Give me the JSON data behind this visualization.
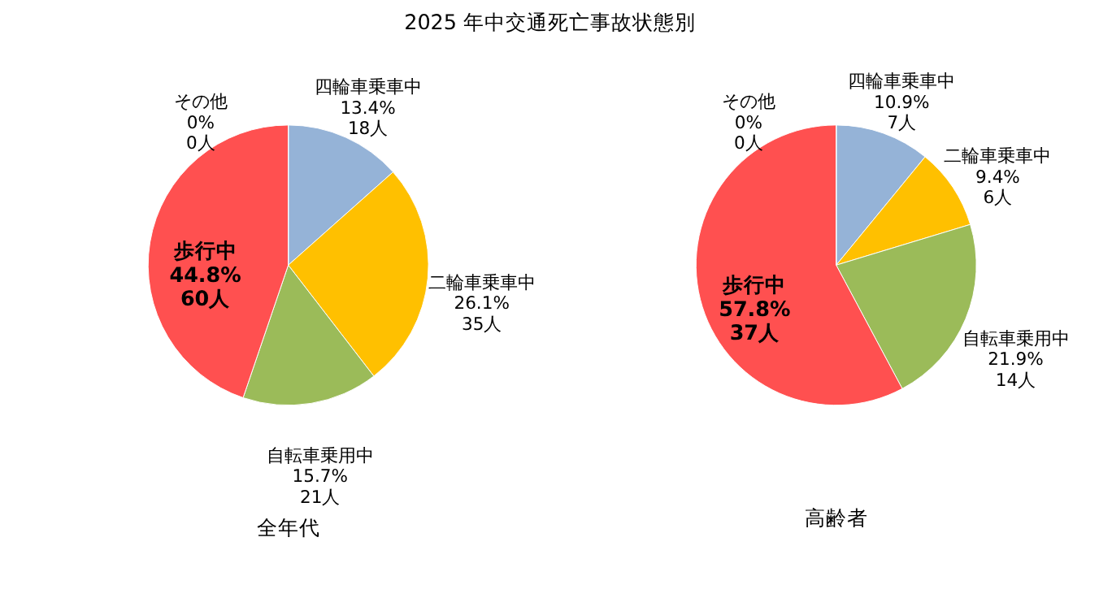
{
  "chart_data": [
    {
      "type": "pie",
      "title": "2025 年中交通死亡事故状態別",
      "xlabel": "全年代",
      "categories": [
        "四輪車乗車中",
        "二輪車乗車中",
        "自転車乗用中",
        "歩行中",
        "その他"
      ],
      "values": [
        18,
        35,
        21,
        60,
        0
      ],
      "value_labels": [
        "13.4%\n18人",
        "26.1%\n35人",
        "15.7%\n21人",
        "44.8%\n60人",
        "0%\n0人"
      ],
      "colors": [
        "#95b3d7",
        "#ffc000",
        "#9bbb59",
        "#ff5050",
        "#bfbfbf"
      ]
    },
    {
      "type": "pie",
      "xlabel": "高齢者",
      "categories": [
        "四輪車乗車中",
        "二輪車乗車中",
        "自転車乗用中",
        "歩行中",
        "その他"
      ],
      "values": [
        7,
        6,
        14,
        37,
        0
      ],
      "value_labels": [
        "10.9%\n7人",
        "9.4%\n6人",
        "21.9%\n14人",
        "57.8%\n37人",
        "0%\n0人"
      ],
      "colors": [
        "#95b3d7",
        "#ffc000",
        "#9bbb59",
        "#ff5050",
        "#bfbfbf"
      ]
    }
  ]
}
